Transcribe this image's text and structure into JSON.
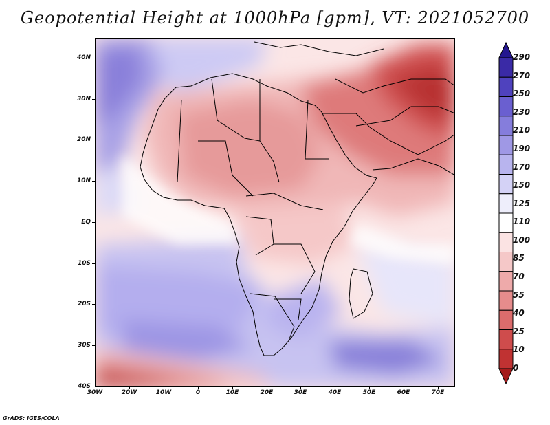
{
  "title": "Geopotential Height at 1000hPa [gpm], VT: 2021052700",
  "map": {
    "region": "Africa and Middle East",
    "variable": "Geopotential Height at 1000hPa",
    "units": "gpm",
    "valid_time": "2021052700",
    "lon_range": [
      -30,
      75
    ],
    "lat_range": [
      -40,
      45
    ],
    "y_axis_labels": [
      "40N",
      "30N",
      "20N",
      "10N",
      "EQ",
      "10S",
      "20S",
      "30S",
      "40S"
    ],
    "x_axis_labels": [
      "30W",
      "20W",
      "10W",
      "0",
      "10E",
      "20E",
      "30E",
      "40E",
      "50E",
      "60E",
      "70E"
    ]
  },
  "colorbar": {
    "levels": [
      "290",
      "270",
      "250",
      "230",
      "210",
      "190",
      "170",
      "150",
      "125",
      "110",
      "100",
      "85",
      "70",
      "55",
      "40",
      "25",
      "10",
      "0"
    ],
    "colors": [
      "#24168f",
      "#3a2aa6",
      "#4f42be",
      "#6a5fd0",
      "#857ddc",
      "#9f98e5",
      "#b8b4ee",
      "#d4d2f6",
      "#eeeefb",
      "#ffffff",
      "#fbe3e3",
      "#f5c8c8",
      "#eeaaaa",
      "#e68c8c",
      "#dc6c6c",
      "#cf4c4c",
      "#c03232",
      "#a51b1b"
    ]
  },
  "footer": "GrADS: IGES/COLA"
}
